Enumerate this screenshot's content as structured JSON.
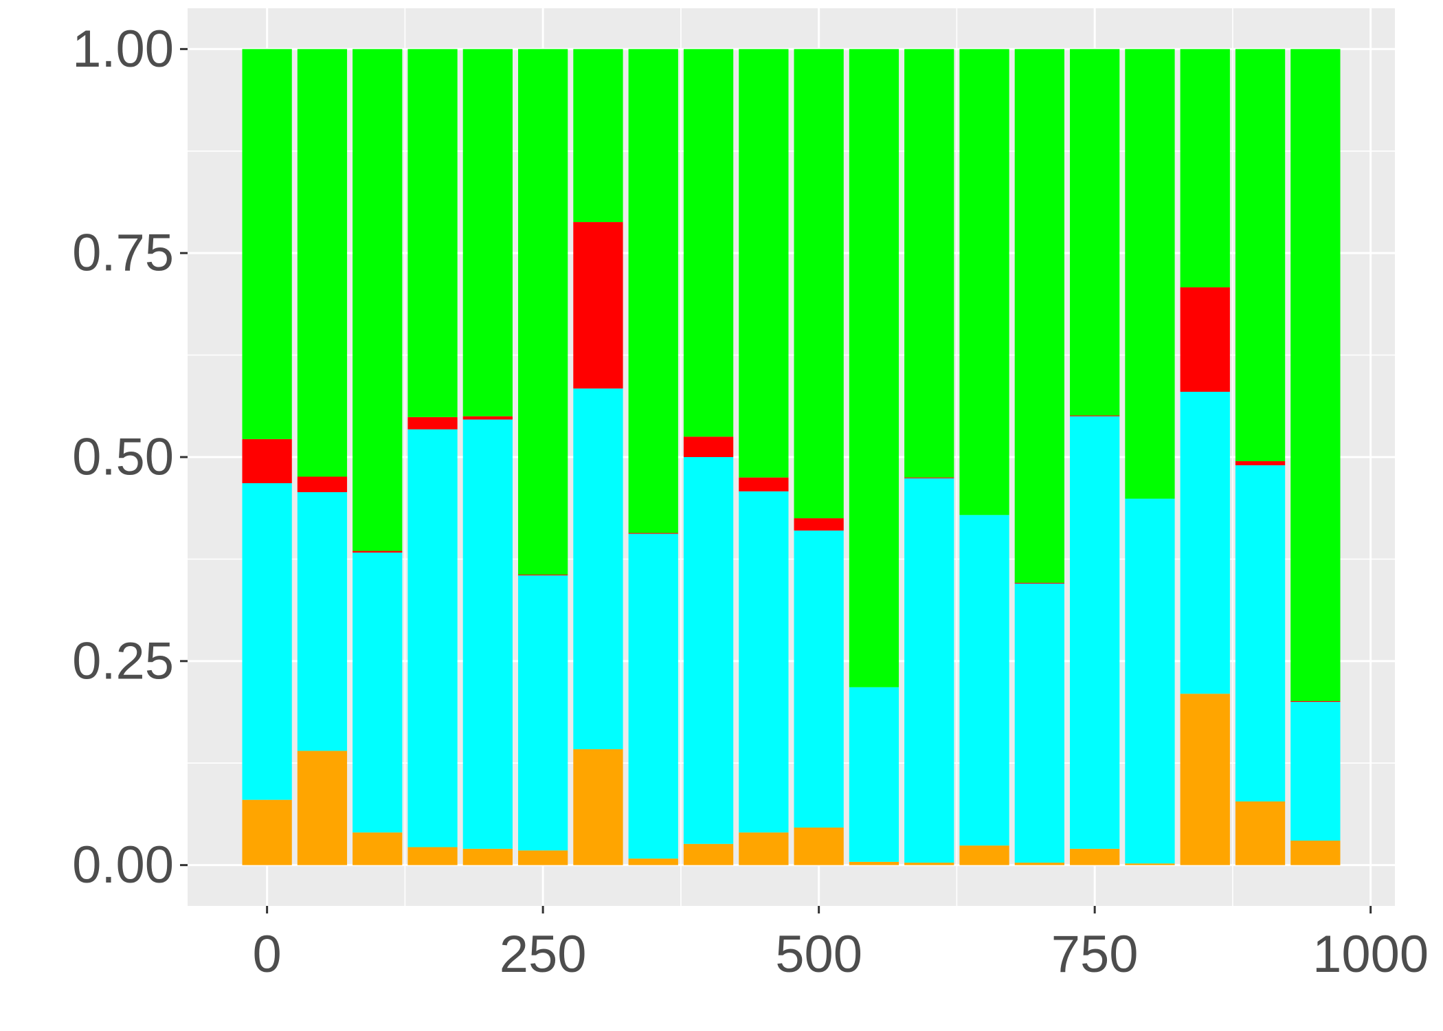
{
  "chart_data": {
    "type": "bar",
    "stacked": true,
    "title": "",
    "xlabel": "",
    "ylabel": "",
    "x": [
      0,
      50,
      100,
      150,
      200,
      250,
      300,
      350,
      400,
      450,
      500,
      550,
      600,
      650,
      700,
      750,
      800,
      850,
      900,
      950
    ],
    "xlim": [
      -72,
      1022
    ],
    "ylim": [
      -0.05,
      1.05
    ],
    "x_ticks": [
      0,
      250,
      500,
      750,
      1000
    ],
    "x_tick_labels": [
      "0",
      "250",
      "500",
      "750",
      "1000"
    ],
    "y_ticks": [
      0,
      0.25,
      0.5,
      0.75,
      1
    ],
    "y_tick_labels": [
      "0.00",
      "0.25",
      "0.50",
      "0.75",
      "1.00"
    ],
    "bar_width": 45,
    "grid": true,
    "legend": "none",
    "series": [
      {
        "color": "#FFA500",
        "values": [
          0.08,
          0.14,
          0.04,
          0.022,
          0.02,
          0.018,
          0.142,
          0.008,
          0.026,
          0.04,
          0.046,
          0.004,
          0.003,
          0.024,
          0.003,
          0.02,
          0.002,
          0.21,
          0.078,
          0.03
        ]
      },
      {
        "color": "#00FFFF",
        "values": [
          0.388,
          0.317,
          0.343,
          0.512,
          0.526,
          0.337,
          0.442,
          0.398,
          0.474,
          0.418,
          0.364,
          0.214,
          0.471,
          0.405,
          0.342,
          0.53,
          0.447,
          0.37,
          0.412,
          0.17
        ]
      },
      {
        "color": "#FF0000",
        "values": [
          0.054,
          0.019,
          0.002,
          0.015,
          0.004,
          0.001,
          0.204,
          0.001,
          0.025,
          0.017,
          0.015,
          0.0,
          0.001,
          0.0,
          0.001,
          0.001,
          0.0,
          0.128,
          0.005,
          0.001
        ]
      },
      {
        "color": "#00FF00",
        "values": [
          0.478,
          0.524,
          0.615,
          0.451,
          0.45,
          0.644,
          0.212,
          0.593,
          0.475,
          0.525,
          0.575,
          0.782,
          0.525,
          0.571,
          0.654,
          0.449,
          0.551,
          0.292,
          0.505,
          0.799
        ]
      }
    ]
  }
}
